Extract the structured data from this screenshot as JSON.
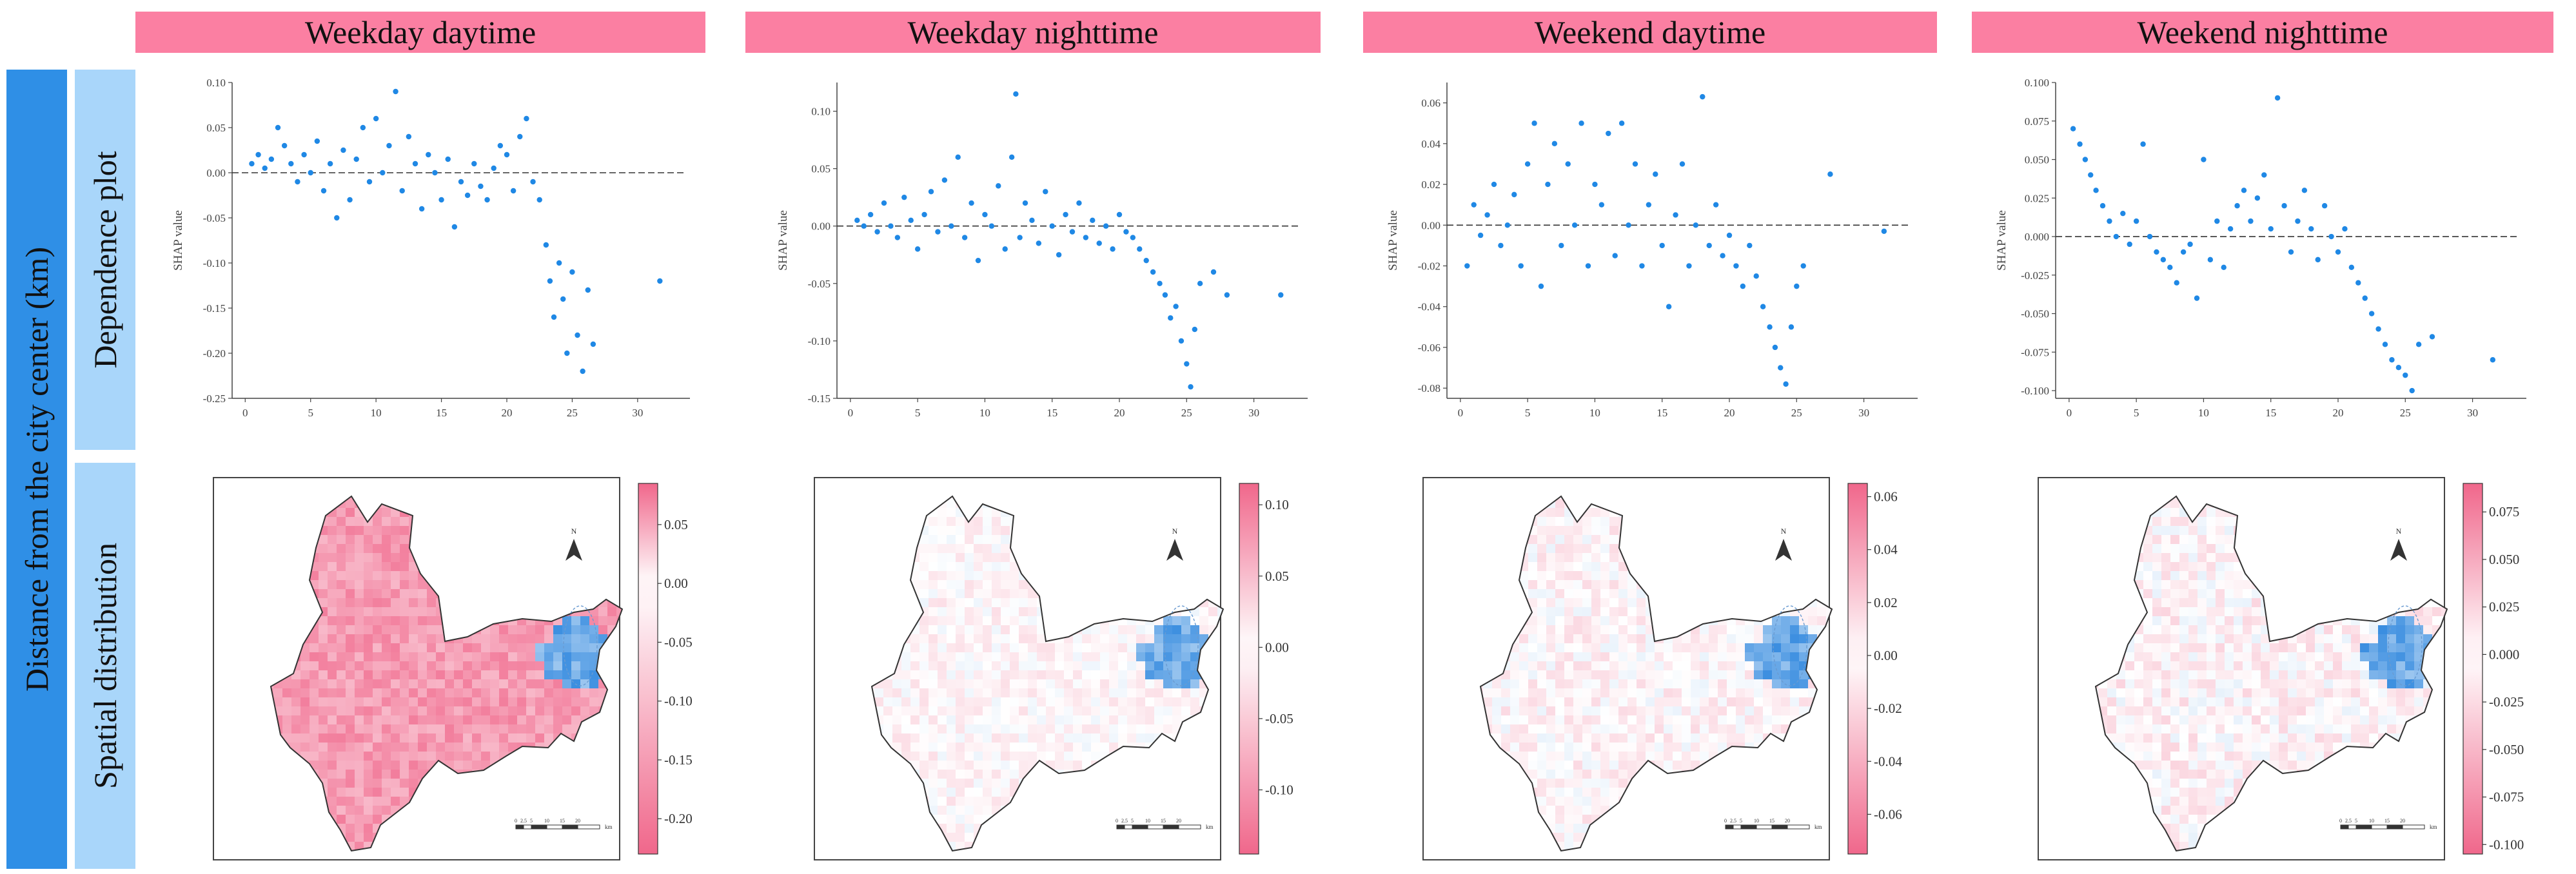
{
  "row_labels": {
    "main": "Distance from the city center (km)",
    "dependence": "Dependence plot",
    "spatial": "Spatial distribution"
  },
  "map_decor": {
    "north": "N",
    "scale_units": "km",
    "scale_ticks": [
      "0",
      "2.5",
      "5",
      "10",
      "15",
      "20"
    ]
  },
  "panels": [
    {
      "title": "Weekday daytime"
    },
    {
      "title": "Weekday nighttime"
    },
    {
      "title": "Weekend daytime"
    },
    {
      "title": "Weekend nighttime"
    }
  ],
  "colors": {
    "header_bg": "#fb7fa2",
    "band_main": "#2f8fe6",
    "band_sub": "#a9d6fa",
    "point": "#1f88e5",
    "map_fill_pos": "#f0678b",
    "map_fill_neg": "#3b8ee0"
  },
  "chart_data": [
    {
      "type": "scatter",
      "title": "Weekday daytime",
      "xlabel": "",
      "ylabel": "SHAP value",
      "xlim": [
        -1,
        34
      ],
      "ylim": [
        -0.25,
        0.1
      ],
      "xticks": [
        0,
        5,
        10,
        15,
        20,
        25,
        30
      ],
      "yticks": [
        0.1,
        0.05,
        0.0,
        -0.05,
        -0.1,
        -0.15,
        -0.2,
        -0.25
      ],
      "ytick_labels": [
        "0.10",
        "0.05",
        "0.00",
        "-0.05",
        "-0.10",
        "-0.15",
        "-0.20",
        "-0.25"
      ],
      "reference_line": 0.0,
      "points": [
        [
          0.5,
          0.01
        ],
        [
          1,
          0.02
        ],
        [
          1.5,
          0.005
        ],
        [
          2,
          0.015
        ],
        [
          2.5,
          0.05
        ],
        [
          3,
          0.03
        ],
        [
          3.5,
          0.01
        ],
        [
          4,
          -0.01
        ],
        [
          4.5,
          0.02
        ],
        [
          5,
          0.0
        ],
        [
          5.5,
          0.035
        ],
        [
          6,
          -0.02
        ],
        [
          6.5,
          0.01
        ],
        [
          7,
          -0.05
        ],
        [
          7.5,
          0.025
        ],
        [
          8,
          -0.03
        ],
        [
          8.5,
          0.015
        ],
        [
          9,
          0.05
        ],
        [
          9.5,
          -0.01
        ],
        [
          10,
          0.06
        ],
        [
          10.5,
          0.0
        ],
        [
          11,
          0.03
        ],
        [
          11.5,
          0.09
        ],
        [
          12,
          -0.02
        ],
        [
          12.5,
          0.04
        ],
        [
          13,
          0.01
        ],
        [
          13.5,
          -0.04
        ],
        [
          14,
          0.02
        ],
        [
          14.5,
          0.0
        ],
        [
          15,
          -0.03
        ],
        [
          15.5,
          0.015
        ],
        [
          16,
          -0.06
        ],
        [
          16.5,
          -0.01
        ],
        [
          17,
          -0.025
        ],
        [
          17.5,
          0.01
        ],
        [
          18,
          -0.015
        ],
        [
          18.5,
          -0.03
        ],
        [
          19,
          0.005
        ],
        [
          19.5,
          0.03
        ],
        [
          20,
          0.02
        ],
        [
          20.5,
          -0.02
        ],
        [
          21,
          0.04
        ],
        [
          21.5,
          0.06
        ],
        [
          22,
          -0.01
        ],
        [
          22.5,
          -0.03
        ],
        [
          23,
          -0.08
        ],
        [
          23.3,
          -0.12
        ],
        [
          23.6,
          -0.16
        ],
        [
          24,
          -0.1
        ],
        [
          24.3,
          -0.14
        ],
        [
          24.6,
          -0.2
        ],
        [
          25,
          -0.11
        ],
        [
          25.4,
          -0.18
        ],
        [
          25.8,
          -0.22
        ],
        [
          26.2,
          -0.13
        ],
        [
          26.6,
          -0.19
        ],
        [
          31.7,
          -0.12
        ]
      ]
    },
    {
      "type": "scatter",
      "title": "Weekday nighttime",
      "xlabel": "",
      "ylabel": "SHAP value",
      "xlim": [
        -1,
        34
      ],
      "ylim": [
        -0.15,
        0.125
      ],
      "xticks": [
        0,
        5,
        10,
        15,
        20,
        25,
        30
      ],
      "yticks": [
        0.1,
        0.05,
        0.0,
        -0.05,
        -0.1,
        -0.15
      ],
      "ytick_labels": [
        "0.10",
        "0.05",
        "0.00",
        "-0.05",
        "-0.10",
        "-0.15"
      ],
      "reference_line": 0.0,
      "points": [
        [
          0.5,
          0.005
        ],
        [
          1,
          0.0
        ],
        [
          1.5,
          0.01
        ],
        [
          2,
          -0.005
        ],
        [
          2.5,
          0.02
        ],
        [
          3,
          0.0
        ],
        [
          3.5,
          -0.01
        ],
        [
          4,
          0.025
        ],
        [
          4.5,
          0.005
        ],
        [
          5,
          -0.02
        ],
        [
          5.5,
          0.01
        ],
        [
          6,
          0.03
        ],
        [
          6.5,
          -0.005
        ],
        [
          7,
          0.04
        ],
        [
          7.5,
          0.0
        ],
        [
          8,
          0.06
        ],
        [
          8.5,
          -0.01
        ],
        [
          9,
          0.02
        ],
        [
          9.5,
          -0.03
        ],
        [
          10,
          0.01
        ],
        [
          10.5,
          0.0
        ],
        [
          11,
          0.035
        ],
        [
          11.5,
          -0.02
        ],
        [
          12,
          0.06
        ],
        [
          12.3,
          0.115
        ],
        [
          12.6,
          -0.01
        ],
        [
          13,
          0.02
        ],
        [
          13.5,
          0.005
        ],
        [
          14,
          -0.015
        ],
        [
          14.5,
          0.03
        ],
        [
          15,
          0.0
        ],
        [
          15.5,
          -0.025
        ],
        [
          16,
          0.01
        ],
        [
          16.5,
          -0.005
        ],
        [
          17,
          0.02
        ],
        [
          17.5,
          -0.01
        ],
        [
          18,
          0.005
        ],
        [
          18.5,
          -0.015
        ],
        [
          19,
          0.0
        ],
        [
          19.5,
          -0.02
        ],
        [
          20,
          0.01
        ],
        [
          20.5,
          -0.005
        ],
        [
          21,
          -0.01
        ],
        [
          21.5,
          -0.02
        ],
        [
          22,
          -0.03
        ],
        [
          22.5,
          -0.04
        ],
        [
          23,
          -0.05
        ],
        [
          23.4,
          -0.06
        ],
        [
          23.8,
          -0.08
        ],
        [
          24.2,
          -0.07
        ],
        [
          24.6,
          -0.1
        ],
        [
          25,
          -0.12
        ],
        [
          25.3,
          -0.14
        ],
        [
          25.6,
          -0.09
        ],
        [
          26,
          -0.05
        ],
        [
          27,
          -0.04
        ],
        [
          28,
          -0.06
        ],
        [
          32,
          -0.06
        ]
      ]
    },
    {
      "type": "scatter",
      "title": "Weekend daytime",
      "xlabel": "",
      "ylabel": "SHAP value",
      "xlim": [
        -1,
        34
      ],
      "ylim": [
        -0.085,
        0.07
      ],
      "xticks": [
        0,
        5,
        10,
        15,
        20,
        25,
        30
      ],
      "yticks": [
        0.06,
        0.04,
        0.02,
        0.0,
        -0.02,
        -0.04,
        -0.06,
        -0.08
      ],
      "ytick_labels": [
        "0.06",
        "0.04",
        "0.02",
        "0.00",
        "-0.02",
        "-0.04",
        "-0.06",
        "-0.08"
      ],
      "reference_line": 0.0,
      "points": [
        [
          0.5,
          -0.02
        ],
        [
          1,
          0.01
        ],
        [
          1.5,
          -0.005
        ],
        [
          2,
          0.005
        ],
        [
          2.5,
          0.02
        ],
        [
          3,
          -0.01
        ],
        [
          3.5,
          0.0
        ],
        [
          4,
          0.015
        ],
        [
          4.5,
          -0.02
        ],
        [
          5,
          0.03
        ],
        [
          5.5,
          0.05
        ],
        [
          6,
          -0.03
        ],
        [
          6.5,
          0.02
        ],
        [
          7,
          0.04
        ],
        [
          7.5,
          -0.01
        ],
        [
          8,
          0.03
        ],
        [
          8.5,
          0.0
        ],
        [
          9,
          0.05
        ],
        [
          9.5,
          -0.02
        ],
        [
          10,
          0.02
        ],
        [
          10.5,
          0.01
        ],
        [
          11,
          0.045
        ],
        [
          11.5,
          -0.015
        ],
        [
          12,
          0.05
        ],
        [
          12.5,
          0.0
        ],
        [
          13,
          0.03
        ],
        [
          13.5,
          -0.02
        ],
        [
          14,
          0.01
        ],
        [
          14.5,
          0.025
        ],
        [
          15,
          -0.01
        ],
        [
          15.5,
          -0.04
        ],
        [
          16,
          0.005
        ],
        [
          16.5,
          0.03
        ],
        [
          17,
          -0.02
        ],
        [
          17.5,
          0.0
        ],
        [
          18,
          0.063
        ],
        [
          18.5,
          -0.01
        ],
        [
          19,
          0.01
        ],
        [
          19.5,
          -0.015
        ],
        [
          20,
          -0.005
        ],
        [
          20.5,
          -0.02
        ],
        [
          21,
          -0.03
        ],
        [
          21.5,
          -0.01
        ],
        [
          22,
          -0.025
        ],
        [
          22.5,
          -0.04
        ],
        [
          23,
          -0.05
        ],
        [
          23.4,
          -0.06
        ],
        [
          23.8,
          -0.07
        ],
        [
          24.2,
          -0.078
        ],
        [
          24.6,
          -0.05
        ],
        [
          25,
          -0.03
        ],
        [
          25.5,
          -0.02
        ],
        [
          27.5,
          0.025
        ],
        [
          31.5,
          -0.003
        ]
      ]
    },
    {
      "type": "scatter",
      "title": "Weekend nighttime",
      "xlabel": "",
      "ylabel": "SHAP value",
      "xlim": [
        -1,
        34
      ],
      "ylim": [
        -0.105,
        0.1
      ],
      "xticks": [
        0,
        5,
        10,
        15,
        20,
        25,
        30
      ],
      "yticks": [
        0.1,
        0.075,
        0.05,
        0.025,
        0.0,
        -0.025,
        -0.05,
        -0.075,
        -0.1
      ],
      "ytick_labels": [
        "0.100",
        "0.075",
        "0.050",
        "0.025",
        "0.000",
        "-0.025",
        "-0.050",
        "-0.075",
        "-0.100"
      ],
      "reference_line": 0.0,
      "points": [
        [
          0.3,
          0.07
        ],
        [
          0.8,
          0.06
        ],
        [
          1.2,
          0.05
        ],
        [
          1.6,
          0.04
        ],
        [
          2,
          0.03
        ],
        [
          2.5,
          0.02
        ],
        [
          3,
          0.01
        ],
        [
          3.5,
          0.0
        ],
        [
          4,
          0.015
        ],
        [
          4.5,
          -0.005
        ],
        [
          5,
          0.01
        ],
        [
          5.5,
          0.06
        ],
        [
          6,
          0.0
        ],
        [
          6.5,
          -0.01
        ],
        [
          7,
          -0.015
        ],
        [
          7.5,
          -0.02
        ],
        [
          8,
          -0.03
        ],
        [
          8.5,
          -0.01
        ],
        [
          9,
          -0.005
        ],
        [
          9.5,
          -0.04
        ],
        [
          10,
          0.05
        ],
        [
          10.5,
          -0.015
        ],
        [
          11,
          0.01
        ],
        [
          11.5,
          -0.02
        ],
        [
          12,
          0.005
        ],
        [
          12.5,
          0.02
        ],
        [
          13,
          0.03
        ],
        [
          13.5,
          0.01
        ],
        [
          14,
          0.025
        ],
        [
          14.5,
          0.04
        ],
        [
          15,
          0.005
        ],
        [
          15.5,
          0.09
        ],
        [
          16,
          0.02
        ],
        [
          16.5,
          -0.01
        ],
        [
          17,
          0.01
        ],
        [
          17.5,
          0.03
        ],
        [
          18,
          0.005
        ],
        [
          18.5,
          -0.015
        ],
        [
          19,
          0.02
        ],
        [
          19.5,
          0.0
        ],
        [
          20,
          -0.01
        ],
        [
          20.5,
          0.005
        ],
        [
          21,
          -0.02
        ],
        [
          21.5,
          -0.03
        ],
        [
          22,
          -0.04
        ],
        [
          22.5,
          -0.05
        ],
        [
          23,
          -0.06
        ],
        [
          23.5,
          -0.07
        ],
        [
          24,
          -0.08
        ],
        [
          24.5,
          -0.085
        ],
        [
          25,
          -0.09
        ],
        [
          25.5,
          -0.1
        ],
        [
          26,
          -0.07
        ],
        [
          27,
          -0.065
        ],
        [
          31.5,
          -0.08
        ]
      ]
    }
  ],
  "colorbars": [
    {
      "ticks": [
        "0.05",
        "0.00",
        "-0.05",
        "-0.10",
        "-0.15",
        "-0.20"
      ],
      "tick_values": [
        0.05,
        0.0,
        -0.05,
        -0.1,
        -0.15,
        -0.2
      ],
      "range": [
        -0.23,
        0.085
      ]
    },
    {
      "ticks": [
        "0.10",
        "0.05",
        "0.00",
        "-0.05",
        "-0.10"
      ],
      "tick_values": [
        0.1,
        0.05,
        0.0,
        -0.05,
        -0.1
      ],
      "range": [
        -0.145,
        0.115
      ]
    },
    {
      "ticks": [
        "0.06",
        "0.04",
        "0.02",
        "0.00",
        "-0.02",
        "-0.04",
        "-0.06"
      ],
      "tick_values": [
        0.06,
        0.04,
        0.02,
        0.0,
        -0.02,
        -0.04,
        -0.06
      ],
      "range": [
        -0.075,
        0.065
      ]
    },
    {
      "ticks": [
        "0.075",
        "0.050",
        "0.025",
        "0.000",
        "-0.025",
        "-0.050",
        "-0.075",
        "-0.100"
      ],
      "tick_values": [
        0.075,
        0.05,
        0.025,
        0.0,
        -0.025,
        -0.05,
        -0.075,
        -0.1
      ],
      "range": [
        -0.105,
        0.09
      ]
    }
  ]
}
